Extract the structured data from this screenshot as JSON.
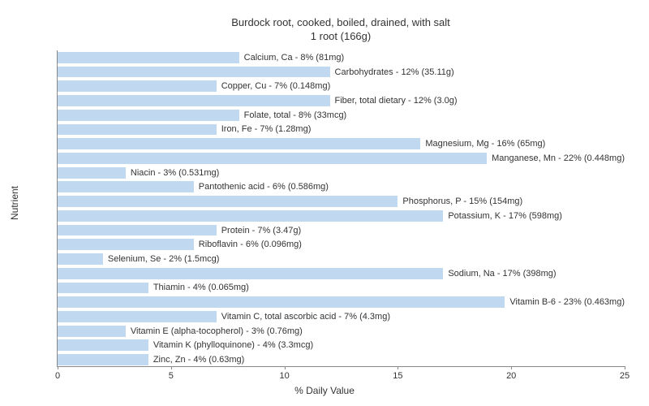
{
  "chart": {
    "type": "bar-horizontal",
    "title_line1": "Burdock root, cooked, boiled, drained, with salt",
    "title_line2": "1 root (166g)",
    "ylabel": "Nutrient",
    "xlabel": "% Daily Value",
    "xlim": [
      0,
      25
    ],
    "xtick_step": 5,
    "xticks": [
      "0",
      "5",
      "10",
      "15",
      "20",
      "25"
    ],
    "bar_color": "#c0d8f0",
    "background_color": "#ffffff",
    "label_fontsize": 11,
    "title_fontsize": 13,
    "nutrients": [
      {
        "name": "Calcium, Ca",
        "pct": 8,
        "amount": "81mg"
      },
      {
        "name": "Carbohydrates",
        "pct": 12,
        "amount": "35.11g"
      },
      {
        "name": "Copper, Cu",
        "pct": 7,
        "amount": "0.148mg"
      },
      {
        "name": "Fiber, total dietary",
        "pct": 12,
        "amount": "3.0g"
      },
      {
        "name": "Folate, total",
        "pct": 8,
        "amount": "33mcg"
      },
      {
        "name": "Iron, Fe",
        "pct": 7,
        "amount": "1.28mg"
      },
      {
        "name": "Magnesium, Mg",
        "pct": 16,
        "amount": "65mg"
      },
      {
        "name": "Manganese, Mn",
        "pct": 22,
        "amount": "0.448mg"
      },
      {
        "name": "Niacin",
        "pct": 3,
        "amount": "0.531mg"
      },
      {
        "name": "Pantothenic acid",
        "pct": 6,
        "amount": "0.586mg"
      },
      {
        "name": "Phosphorus, P",
        "pct": 15,
        "amount": "154mg"
      },
      {
        "name": "Potassium, K",
        "pct": 17,
        "amount": "598mg"
      },
      {
        "name": "Protein",
        "pct": 7,
        "amount": "3.47g"
      },
      {
        "name": "Riboflavin",
        "pct": 6,
        "amount": "0.096mg"
      },
      {
        "name": "Selenium, Se",
        "pct": 2,
        "amount": "1.5mcg"
      },
      {
        "name": "Sodium, Na",
        "pct": 17,
        "amount": "398mg"
      },
      {
        "name": "Thiamin",
        "pct": 4,
        "amount": "0.065mg"
      },
      {
        "name": "Vitamin B-6",
        "pct": 23,
        "amount": "0.463mg"
      },
      {
        "name": "Vitamin C, total ascorbic acid",
        "pct": 7,
        "amount": "4.3mg"
      },
      {
        "name": "Vitamin E (alpha-tocopherol)",
        "pct": 3,
        "amount": "0.76mg"
      },
      {
        "name": "Vitamin K (phylloquinone)",
        "pct": 4,
        "amount": "3.3mcg"
      },
      {
        "name": "Zinc, Zn",
        "pct": 4,
        "amount": "0.63mg"
      }
    ]
  }
}
